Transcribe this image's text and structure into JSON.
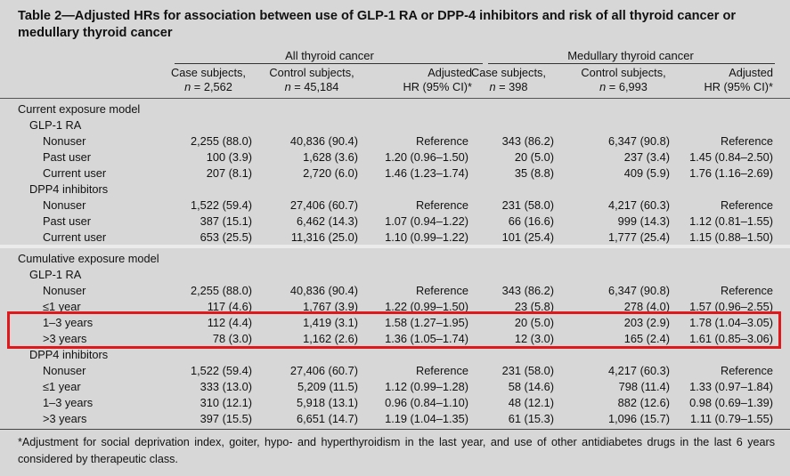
{
  "title": "Table 2—Adjusted HRs for association between use of GLP-1 RA or DPP-4 inhibitors and risk of all thyroid cancer or medullary thyroid cancer",
  "groups": {
    "all": "All thyroid cancer",
    "medullary": "Medullary thyroid cancer"
  },
  "columns": [
    {
      "l1": "Case subjects,",
      "l2pre": "n",
      "l2": " = 2,562"
    },
    {
      "l1": "Control subjects,",
      "l2pre": "n",
      "l2": " = 45,184"
    },
    {
      "l1": "Adjusted",
      "l2pre": "",
      "l2": "HR (95% CI)*"
    },
    {
      "l1": "Case subjects,",
      "l2pre": "n",
      "l2": " = 398"
    },
    {
      "l1": "Control subjects,",
      "l2pre": "n",
      "l2": " = 6,993"
    },
    {
      "l1": "Adjusted",
      "l2pre": "",
      "l2": "HR (95% CI)*"
    }
  ],
  "rows": [
    {
      "indent": 0,
      "label": "Current exposure model",
      "v": []
    },
    {
      "indent": 1,
      "label": "GLP-1 RA",
      "v": []
    },
    {
      "indent": 2,
      "label": "Nonuser",
      "v": [
        "2,255 (88.0)",
        "40,836 (90.4)",
        "Reference",
        "343 (86.2)",
        "6,347 (90.8)",
        "Reference"
      ]
    },
    {
      "indent": 2,
      "label": "Past user",
      "v": [
        "100 (3.9)",
        "1,628 (3.6)",
        "1.20 (0.96–1.50)",
        "20 (5.0)",
        "237 (3.4)",
        "1.45 (0.84–2.50)"
      ]
    },
    {
      "indent": 2,
      "label": "Current user",
      "v": [
        "207 (8.1)",
        "2,720 (6.0)",
        "1.46 (1.23–1.74)",
        "35 (8.8)",
        "409 (5.9)",
        "1.76 (1.16–2.69)"
      ]
    },
    {
      "indent": 1,
      "label": "DPP4 inhibitors",
      "v": []
    },
    {
      "indent": 2,
      "label": "Nonuser",
      "v": [
        "1,522 (59.4)",
        "27,406 (60.7)",
        "Reference",
        "231 (58.0)",
        "4,217 (60.3)",
        "Reference"
      ]
    },
    {
      "indent": 2,
      "label": "Past user",
      "v": [
        "387 (15.1)",
        "6,462 (14.3)",
        "1.07 (0.94–1.22)",
        "66 (16.6)",
        "999 (14.3)",
        "1.12 (0.81–1.55)"
      ]
    },
    {
      "indent": 2,
      "label": "Current user",
      "v": [
        "653 (25.5)",
        "11,316 (25.0)",
        "1.10 (0.99–1.22)",
        "101 (25.4)",
        "1,777 (25.4)",
        "1.15 (0.88–1.50)"
      ]
    },
    {
      "indent": 0,
      "label": "Cumulative exposure model",
      "v": []
    },
    {
      "indent": 1,
      "label": "GLP-1 RA",
      "v": []
    },
    {
      "indent": 2,
      "label": "Nonuser",
      "v": [
        "2,255 (88.0)",
        "40,836 (90.4)",
        "Reference",
        "343 (86.2)",
        "6,347 (90.8)",
        "Reference"
      ]
    },
    {
      "indent": 2,
      "label": "≤1 year",
      "v": [
        "117 (4.6)",
        "1,767 (3.9)",
        "1.22 (0.99–1.50)",
        "23 (5.8)",
        "278 (4.0)",
        "1.57 (0.96–2.55)"
      ]
    },
    {
      "indent": 2,
      "label": "1–3 years",
      "v": [
        "112 (4.4)",
        "1,419 (3.1)",
        "1.58 (1.27–1.95)",
        "20 (5.0)",
        "203 (2.9)",
        "1.78 (1.04–3.05)"
      ]
    },
    {
      "indent": 2,
      "label": ">3 years",
      "v": [
        "78 (3.0)",
        "1,162 (2.6)",
        "1.36 (1.05–1.74)",
        "12 (3.0)",
        "165 (2.4)",
        "1.61 (0.85–3.06)"
      ]
    },
    {
      "indent": 1,
      "label": "DPP4 inhibitors",
      "v": []
    },
    {
      "indent": 2,
      "label": "Nonuser",
      "v": [
        "1,522 (59.4)",
        "27,406 (60.7)",
        "Reference",
        "231 (58.0)",
        "4,217 (60.3)",
        "Reference"
      ]
    },
    {
      "indent": 2,
      "label": "≤1 year",
      "v": [
        "333 (13.0)",
        "5,209 (11.5)",
        "1.12 (0.99–1.28)",
        "58 (14.6)",
        "798 (11.4)",
        "1.33 (0.97–1.84)"
      ]
    },
    {
      "indent": 2,
      "label": "1–3 years",
      "v": [
        "310 (12.1)",
        "5,918 (13.1)",
        "0.96 (0.84–1.10)",
        "48 (12.1)",
        "882 (12.6)",
        "0.98 (0.69–1.39)"
      ]
    },
    {
      "indent": 2,
      "label": ">3 years",
      "v": [
        "397 (15.5)",
        "6,651 (14.7)",
        "1.19 (1.04–1.35)",
        "61 (15.3)",
        "1,096 (15.7)",
        "1.11 (0.79–1.55)"
      ]
    }
  ],
  "footnote": "*Adjustment for social deprivation index, goiter, hypo- and hyperthyroidism in the last year, and use of other antidiabetes drugs in the last 6 years considered by therapeutic class.",
  "colors": {
    "background": "#d7d7d7",
    "highlight": "#e0181c"
  }
}
